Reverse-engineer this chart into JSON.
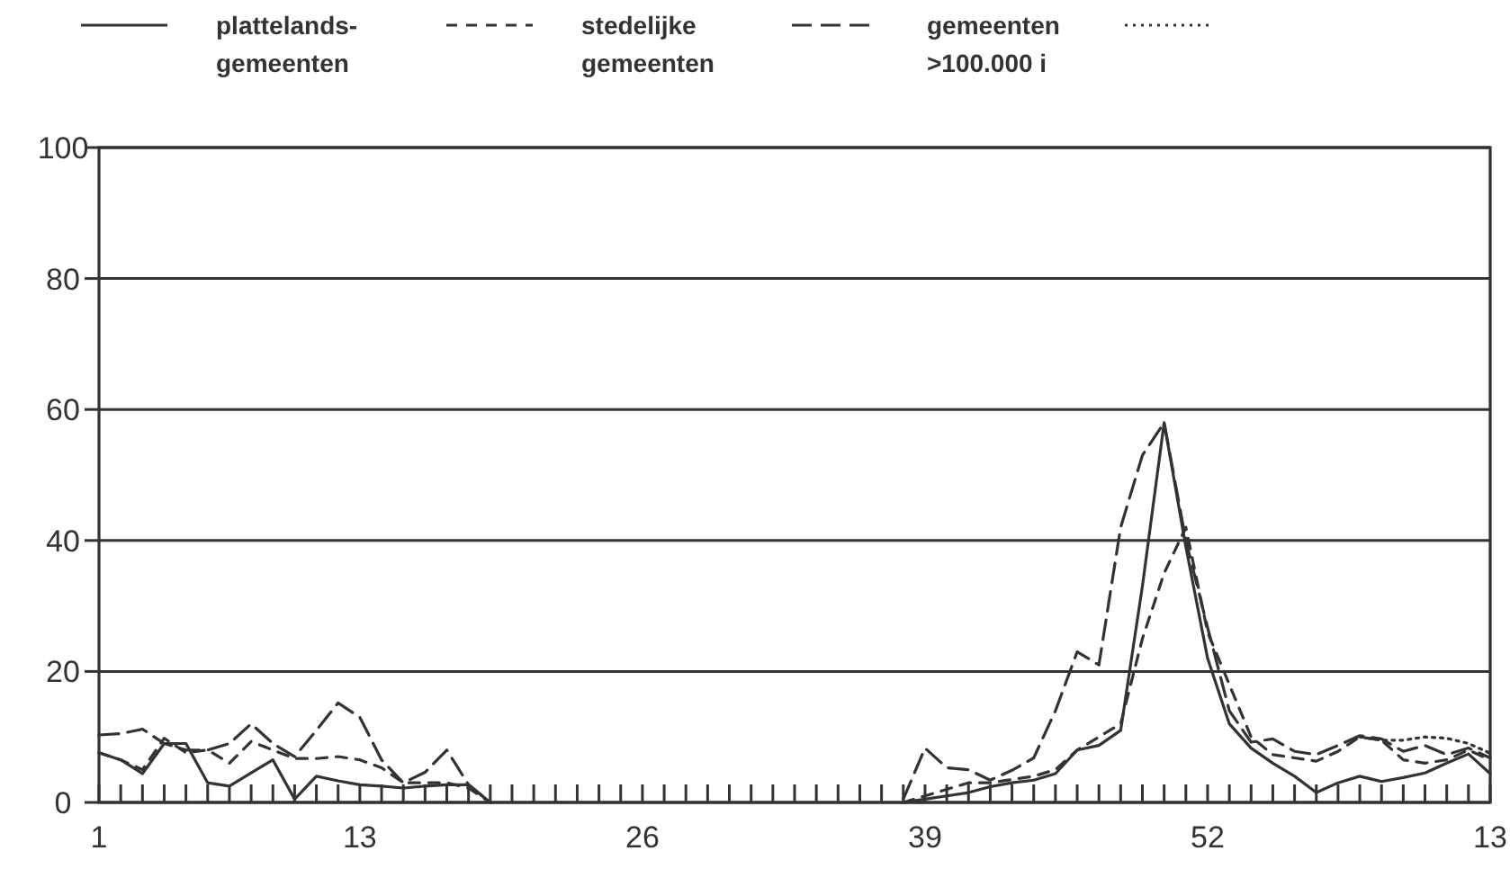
{
  "chart_data": {
    "type": "line",
    "categories": [
      "1",
      null,
      null,
      null,
      null,
      null,
      null,
      null,
      null,
      null,
      null,
      null,
      "13",
      null,
      null,
      null,
      null,
      null,
      null,
      null,
      null,
      null,
      null,
      null,
      null,
      "26",
      null,
      null,
      null,
      null,
      null,
      null,
      null,
      null,
      null,
      null,
      null,
      null,
      "39",
      null,
      null,
      null,
      null,
      null,
      null,
      null,
      null,
      null,
      null,
      null,
      null,
      "52",
      null,
      null,
      null,
      null,
      null,
      null,
      null,
      null,
      null,
      null,
      null,
      null,
      "13"
    ],
    "series": [
      {
        "name": "plattelands-\ngemeenten",
        "color": "#333333",
        "line_style": "solid",
        "values": [
          7.6,
          6.5,
          4.4,
          9,
          9,
          3,
          2.5,
          4.5,
          6.5,
          0.5,
          4,
          3.3,
          2.7,
          2.5,
          2.2,
          2.5,
          2.7,
          2.7,
          0,
          null,
          null,
          null,
          null,
          null,
          null,
          null,
          null,
          null,
          null,
          null,
          null,
          null,
          null,
          null,
          null,
          null,
          null,
          0,
          0.5,
          1,
          1.5,
          2.4,
          3,
          3.4,
          4.4,
          8,
          8.7,
          11,
          33,
          58,
          39,
          22,
          12,
          8.3,
          6,
          4,
          1.5,
          3,
          4,
          3.2,
          3.8,
          4.5,
          6,
          7.4,
          4.4
        ]
      },
      {
        "name": "stedelijke\ngemeenten",
        "color": "#333333",
        "line_style": "dashed",
        "values": [
          7.6,
          6.5,
          5,
          9.8,
          7.6,
          8,
          6,
          9.3,
          8,
          6.7,
          6.7,
          7,
          6.5,
          5.3,
          3,
          3,
          3,
          2.2,
          0,
          null,
          null,
          null,
          null,
          null,
          null,
          null,
          null,
          null,
          null,
          null,
          null,
          null,
          null,
          null,
          null,
          null,
          null,
          0,
          1,
          2,
          3,
          3,
          3.5,
          4,
          5,
          8,
          10,
          12,
          25,
          35,
          42,
          26,
          18,
          10,
          7.3,
          6.8,
          6.3,
          7.8,
          10,
          9.5,
          6.5,
          6,
          6.5,
          8,
          6.5
        ]
      },
      {
        "name": "gemeenten\n>100.000 i",
        "color": "#333333",
        "line_style": "dashed",
        "values": [
          10.3,
          10.5,
          11.2,
          9,
          8,
          8,
          9,
          12,
          9,
          7,
          11,
          15.2,
          13,
          6.5,
          3,
          4.6,
          8,
          2.7,
          0,
          null,
          null,
          null,
          null,
          null,
          null,
          null,
          null,
          null,
          null,
          null,
          null,
          null,
          null,
          null,
          null,
          null,
          null,
          0.5,
          8.3,
          5.3,
          5,
          3.4,
          4.9,
          6.8,
          14,
          23,
          21,
          42,
          53,
          58,
          40,
          26.7,
          14,
          9.2,
          9.7,
          7.8,
          7.3,
          8.7,
          10.2,
          9.7,
          7.8,
          8.7,
          7.3,
          8.3,
          6.8
        ]
      },
      {
        "color": "#333333",
        "line_style": "dotted",
        "values": [
          null,
          null,
          null,
          null,
          null,
          null,
          null,
          null,
          null,
          null,
          null,
          null,
          null,
          null,
          null,
          null,
          null,
          null,
          null,
          null,
          null,
          null,
          null,
          null,
          null,
          null,
          null,
          null,
          null,
          null,
          null,
          null,
          null,
          null,
          null,
          null,
          null,
          null,
          null,
          null,
          null,
          null,
          null,
          null,
          null,
          null,
          null,
          null,
          null,
          null,
          null,
          null,
          null,
          null,
          null,
          null,
          null,
          null,
          10,
          9.5,
          9.5,
          10,
          9.8,
          9,
          7.5
        ]
      }
    ],
    "ylim": [
      0,
      100
    ],
    "yticks": [
      0,
      20,
      40,
      60,
      80,
      100
    ],
    "grid": "y",
    "legend": "top",
    "marker": "none"
  }
}
